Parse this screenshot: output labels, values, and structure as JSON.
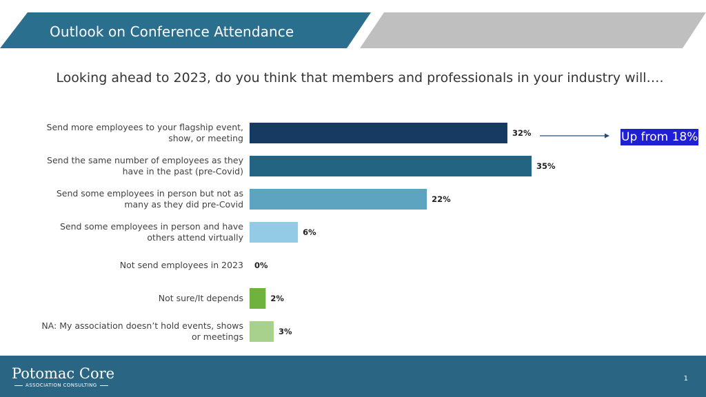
{
  "header": {
    "title": "Outlook on Conference Attendance"
  },
  "question": "Looking ahead to 2023, do you think that members and professionals  in your industry will….",
  "callout": {
    "text": "Up from 18%"
  },
  "footer": {
    "brand": "Potomac Core",
    "tagline": "ASSOCIATION CONSULTING",
    "page_number": "1"
  },
  "colors": {
    "banner": "#2b6f8f",
    "banner_gray": "#bfbfbf",
    "footer": "#2a6584",
    "arrow": "#1f4e79",
    "callout_bg": "#1f1fd6"
  },
  "chart_data": {
    "type": "bar",
    "orientation": "horizontal",
    "categories": [
      [
        "Send more employees to your flagship event,",
        "show, or meeting"
      ],
      [
        "Send the same number of employees as they",
        "have in the past (pre-Covid)"
      ],
      [
        "Send some employees in person but not as",
        "many as they did pre-Covid"
      ],
      [
        "Send some employees in person and have",
        "others attend virtually"
      ],
      [
        "Not send employees in 2023"
      ],
      [
        "Not sure/It depends"
      ],
      [
        "NA: My association doesn’t hold events, shows",
        "or meetings"
      ]
    ],
    "values": [
      32,
      35,
      22,
      6,
      0,
      2,
      3
    ],
    "value_labels": [
      "32%",
      "35%",
      "22%",
      "6%",
      "0%",
      "2%",
      "3%"
    ],
    "bar_colors": [
      "#163a62",
      "#226481",
      "#5ca4bf",
      "#93cae5",
      "#93cae5",
      "#6fb23e",
      "#a9d18e"
    ],
    "xlim": [
      0,
      35
    ],
    "grid": false,
    "legend": "none"
  }
}
